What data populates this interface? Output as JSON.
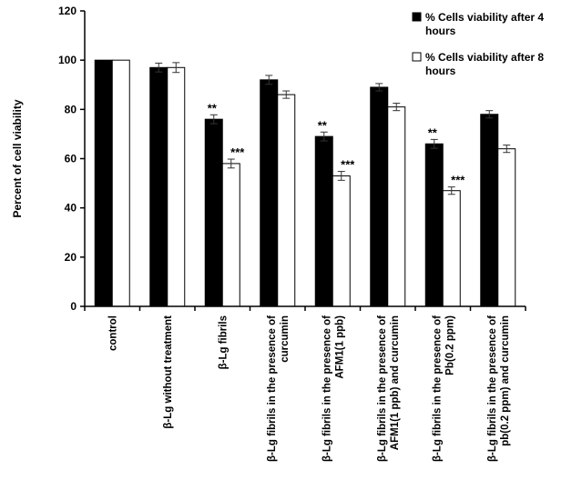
{
  "chart_data": {
    "type": "bar",
    "title": "",
    "xlabel": "",
    "ylabel": "Percent of cell viability",
    "ylim": [
      0,
      120
    ],
    "yticks": [
      0,
      20,
      40,
      60,
      80,
      100,
      120
    ],
    "grid": false,
    "legend_position": "top-right",
    "categories": [
      [
        "control"
      ],
      [
        "β-Lg without treatment"
      ],
      [
        "β-Lg fibrils"
      ],
      [
        "β-Lg fibrils in the presence of",
        "curcumin"
      ],
      [
        "β-Lg fibrils in the presence of",
        "AFM1(1 ppb)"
      ],
      [
        "β-Lg fibrils in the presence of",
        "AFM1(1 ppb) and curcumin"
      ],
      [
        "β-Lg fibrils in the presence of",
        "Pb(0.2 ppm)"
      ],
      [
        "β-Lg fibrils in the presence of",
        "pb(0.2 ppm)  and  curcumin"
      ]
    ],
    "series": [
      {
        "name": [
          "%  Cells viability after 4",
          "hours"
        ],
        "color": "#000000",
        "values": [
          100,
          97,
          76,
          92,
          69,
          89,
          66,
          78
        ],
        "errors": [
          0,
          1.8,
          1.8,
          1.8,
          1.8,
          1.5,
          1.8,
          1.5
        ],
        "annotations": [
          "",
          "",
          "**",
          "",
          "**",
          "",
          "**",
          ""
        ]
      },
      {
        "name": [
          "%  Cells viability after 8",
          "hours"
        ],
        "color": "#ffffff",
        "values": [
          100,
          97,
          58,
          86,
          53,
          81,
          47,
          64
        ],
        "errors": [
          0,
          2,
          1.8,
          1.5,
          1.8,
          1.5,
          1.5,
          1.5
        ],
        "annotations": [
          "",
          "",
          "***",
          "",
          "***",
          "",
          "***",
          ""
        ]
      }
    ]
  }
}
